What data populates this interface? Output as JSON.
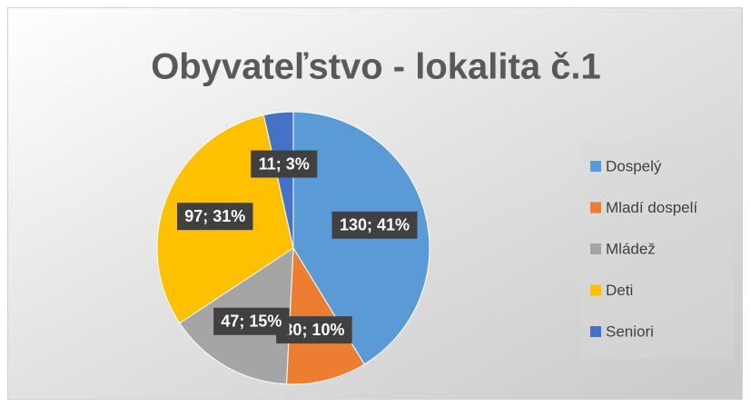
{
  "chart_data": {
    "type": "pie",
    "title": "Obyvateľstvo  - lokalita č.1",
    "categories": [
      "Dospelý",
      "Mladí dospelí",
      "Mládež",
      "Deti",
      "Seniori"
    ],
    "values": [
      130,
      30,
      47,
      97,
      11
    ],
    "value_labels": [
      "130; 41%",
      "30; 10%",
      "47; 15%",
      "97; 31%",
      "11; 3%"
    ],
    "colors": [
      "#5b9bd5",
      "#ed7d31",
      "#a5a5a5",
      "#ffc000",
      "#4472c4"
    ],
    "legend": "right"
  }
}
